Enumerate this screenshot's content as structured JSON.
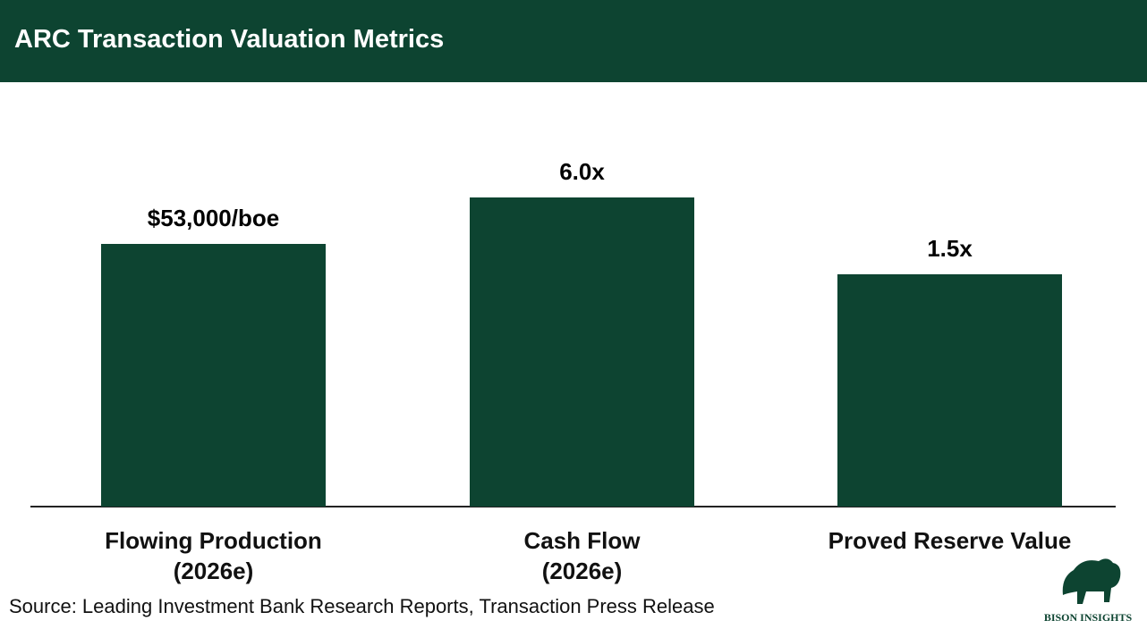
{
  "chart_data": {
    "type": "bar",
    "title": "ARC Transaction Valuation Metrics",
    "categories": [
      "Flowing Production\n(2026e)",
      "Cash Flow\n(2026e)",
      "Proved Reserve Value"
    ],
    "values": [
      53000,
      6.0,
      1.5
    ],
    "value_labels": [
      "$53,000/boe",
      "6.0x",
      "1.5x"
    ],
    "color": "#0d4431",
    "source": "Source: Leading Investment Bank Research Reports, Transaction Press Release",
    "logo": "BISON INSIGHTS"
  }
}
